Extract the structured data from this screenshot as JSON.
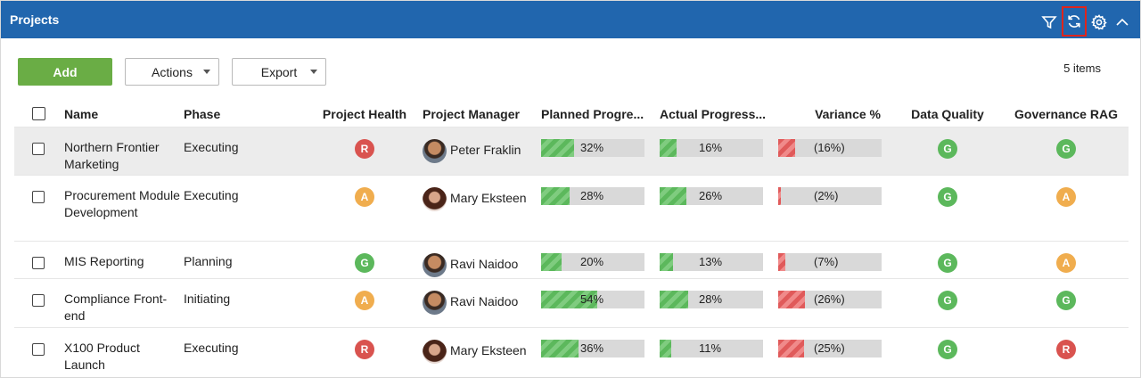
{
  "header": {
    "title": "Projects"
  },
  "toolbar": {
    "add_label": "Add",
    "actions_label": "Actions",
    "export_label": "Export",
    "items_count": "5 items"
  },
  "columns": [
    "Name",
    "Phase",
    "Project Health",
    "Project Manager",
    "Planned Progre...",
    "Actual Progress...",
    "Variance %",
    "Data Quality",
    "Governance RAG"
  ],
  "rows": [
    {
      "name": "Northern Frontier Marketing",
      "phase": "Executing",
      "health": "R",
      "pm": "Peter Fraklin",
      "pm_avatar": "m",
      "planned": 32,
      "planned_label": "32%",
      "actual": 16,
      "actual_label": "16%",
      "variance": 16,
      "variance_label": "(16%)",
      "dq": "G",
      "gov": "G",
      "selected": true,
      "height": 54
    },
    {
      "name": "Procurement Module Development",
      "phase": "Executing",
      "health": "A",
      "pm": "Mary Eksteen",
      "pm_avatar": "f",
      "planned": 28,
      "planned_label": "28%",
      "actual": 26,
      "actual_label": "26%",
      "variance": 2,
      "variance_label": "(2%)",
      "dq": "G",
      "gov": "A",
      "selected": false,
      "height": 74
    },
    {
      "name": "MIS Reporting",
      "phase": "Planning",
      "health": "G",
      "pm": "Ravi Naidoo",
      "pm_avatar": "m",
      "planned": 20,
      "planned_label": "20%",
      "actual": 13,
      "actual_label": "13%",
      "variance": 7,
      "variance_label": "(7%)",
      "dq": "G",
      "gov": "A",
      "selected": false,
      "height": 42
    },
    {
      "name": "Compliance Front-end",
      "phase": "Initiating",
      "health": "A",
      "pm": "Ravi Naidoo",
      "pm_avatar": "m",
      "planned": 54,
      "planned_label": "54%",
      "actual": 28,
      "actual_label": "28%",
      "variance": 26,
      "variance_label": "(26%)",
      "dq": "G",
      "gov": "G",
      "selected": false,
      "height": 55
    },
    {
      "name": "X100 Product Launch",
      "phase": "Executing",
      "health": "R",
      "pm": "Mary Eksteen",
      "pm_avatar": "f",
      "planned": 36,
      "planned_label": "36%",
      "actual": 11,
      "actual_label": "11%",
      "variance": 25,
      "variance_label": "(25%)",
      "dq": "G",
      "gov": "R",
      "selected": false,
      "height": 60
    }
  ],
  "icons": {
    "filter": "filter-icon",
    "refresh": "refresh-icon",
    "settings": "gear-icon",
    "collapse": "chevron-up-icon"
  },
  "colors": {
    "header": "#2166ae",
    "add": "#6aad45",
    "red": "#d9534f",
    "amber": "#f0ad4e",
    "green": "#5cb85c"
  }
}
